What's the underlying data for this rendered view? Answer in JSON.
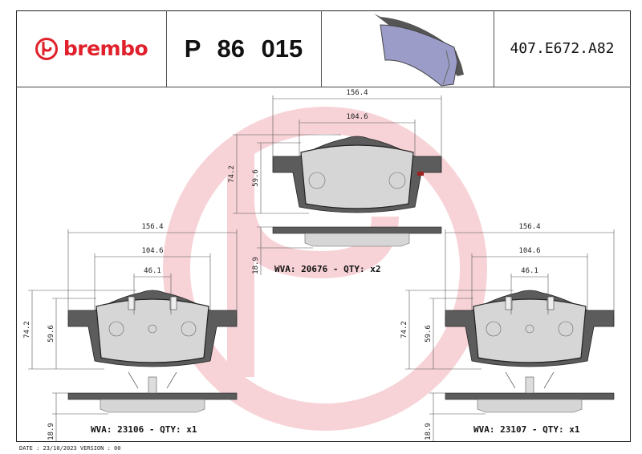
{
  "header": {
    "brand": "brembo",
    "product_code": "P 86 015",
    "reference": "407.E672.A82"
  },
  "colors": {
    "brand_red": "#e0202a",
    "watermark": "#f7d3d7",
    "backing_plate": "#5c5c5c",
    "friction": "#d6d6d6",
    "thumbnail_pad": "#9b9cc8"
  },
  "dimensions": {
    "width_total": "156.4",
    "width_friction": "104.6",
    "width_inner": "46.1",
    "height_total": "74.2",
    "height_friction": "59.6",
    "thickness": "18.9"
  },
  "pads": [
    {
      "wva_label": "WVA: 20676 - QTY: x2"
    },
    {
      "wva_label": "WVA: 23106 - QTY: x1"
    },
    {
      "wva_label": "WVA: 23107 - QTY: x1"
    }
  ],
  "footer": {
    "date_line": "DATE : 23/10/2023 VERSION : 00"
  }
}
